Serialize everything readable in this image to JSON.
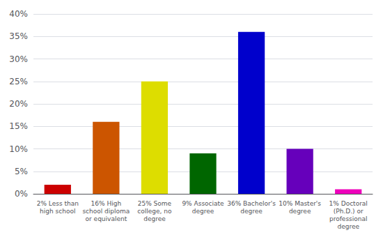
{
  "chart_data": {
    "type": "bar",
    "categories": [
      "2% Less than\nhigh school",
      "16% High\nschool diploma\nor equivalent",
      "25% Some\ncollege, no\ndegree",
      "9% Associate\ndegree",
      "36% Bachelor's\ndegree",
      "10% Master's\ndegree",
      "1% Doctoral\n(Ph.D.) or\nprofessional\ndegree"
    ],
    "values": [
      2,
      16,
      25,
      9,
      36,
      10,
      1
    ],
    "colors": [
      "#cc0000",
      "#cc5500",
      "#dddd00",
      "#006600",
      "#0000cc",
      "#6600bb",
      "#ee00bb"
    ],
    "ylim": [
      0,
      40
    ],
    "yticks": [
      {
        "value": 0,
        "label": "0%"
      },
      {
        "value": 5,
        "label": "5%"
      },
      {
        "value": 10,
        "label": "10%"
      },
      {
        "value": 15,
        "label": "15%"
      },
      {
        "value": 20,
        "label": "20%"
      },
      {
        "value": 25,
        "label": "25%"
      },
      {
        "value": 30,
        "label": "30%"
      },
      {
        "value": 35,
        "label": "35%"
      },
      {
        "value": 40,
        "label": "40%"
      }
    ],
    "grid": true
  }
}
